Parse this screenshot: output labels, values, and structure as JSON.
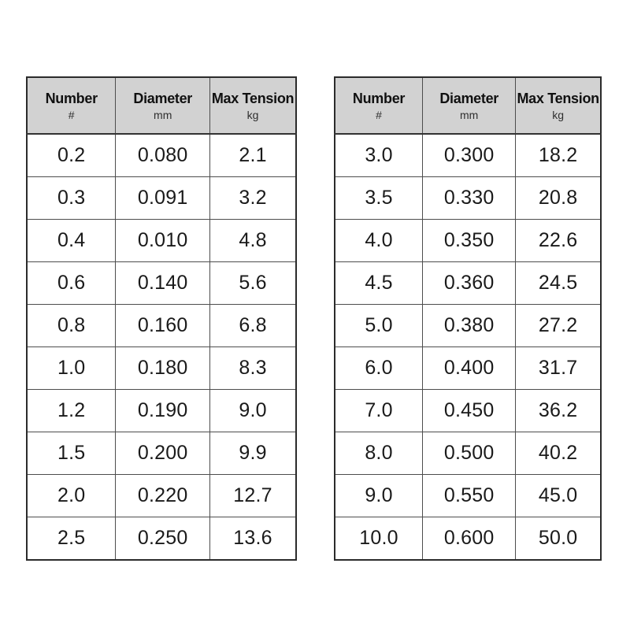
{
  "page": {
    "background": "#ffffff"
  },
  "colors": {
    "header_bg": "#d2d2d2",
    "outer_border": "#2b2b2b",
    "inner_border": "#4d4d4d",
    "header_text": "#111111",
    "unit_text": "#2e2e2e",
    "cell_text": "#1a1a1a"
  },
  "chart_data": [
    {
      "type": "table",
      "title": "",
      "columns": [
        {
          "label": "Number",
          "unit": "#"
        },
        {
          "label": "Diameter",
          "unit": "mm"
        },
        {
          "label": "Max Tension",
          "unit": "kg"
        }
      ],
      "rows": [
        [
          "0.2",
          "0.080",
          "2.1"
        ],
        [
          "0.3",
          "0.091",
          "3.2"
        ],
        [
          "0.4",
          "0.010",
          "4.8"
        ],
        [
          "0.6",
          "0.140",
          "5.6"
        ],
        [
          "0.8",
          "0.160",
          "6.8"
        ],
        [
          "1.0",
          "0.180",
          "8.3"
        ],
        [
          "1.2",
          "0.190",
          "9.0"
        ],
        [
          "1.5",
          "0.200",
          "9.9"
        ],
        [
          "2.0",
          "0.220",
          "12.7"
        ],
        [
          "2.5",
          "0.250",
          "13.6"
        ]
      ]
    },
    {
      "type": "table",
      "title": "",
      "columns": [
        {
          "label": "Number",
          "unit": "#"
        },
        {
          "label": "Diameter",
          "unit": "mm"
        },
        {
          "label": "Max Tension",
          "unit": "kg"
        }
      ],
      "rows": [
        [
          "3.0",
          "0.300",
          "18.2"
        ],
        [
          "3.5",
          "0.330",
          "20.8"
        ],
        [
          "4.0",
          "0.350",
          "22.6"
        ],
        [
          "4.5",
          "0.360",
          "24.5"
        ],
        [
          "5.0",
          "0.380",
          "27.2"
        ],
        [
          "6.0",
          "0.400",
          "31.7"
        ],
        [
          "7.0",
          "0.450",
          "36.2"
        ],
        [
          "8.0",
          "0.500",
          "40.2"
        ],
        [
          "9.0",
          "0.550",
          "45.0"
        ],
        [
          "10.0",
          "0.600",
          "50.0"
        ]
      ]
    }
  ]
}
